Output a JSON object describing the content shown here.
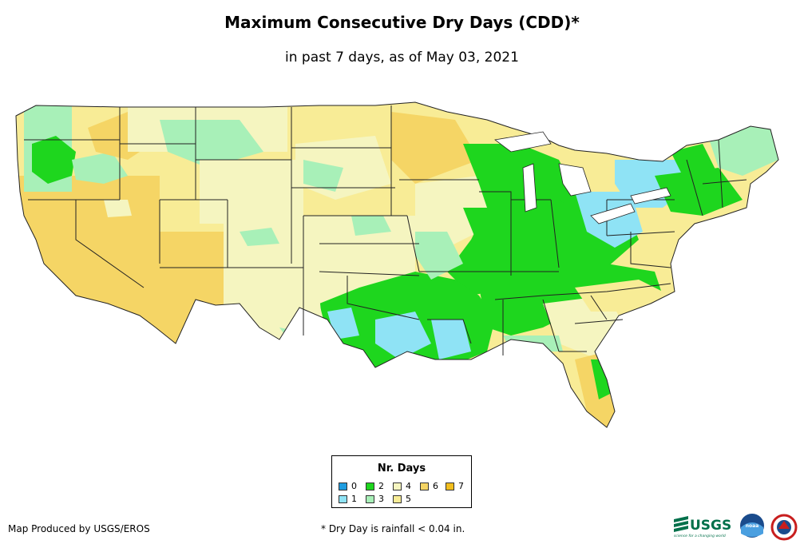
{
  "header": {
    "title": "Maximum Consecutive Dry Days (CDD)*",
    "subtitle": "in past 7 days, as of May 03, 2021"
  },
  "legend": {
    "title": "Nr. Days",
    "items": [
      {
        "label": "0",
        "color": "#1f9de0"
      },
      {
        "label": "1",
        "color": "#8fe3f5"
      },
      {
        "label": "2",
        "color": "#1ed61e"
      },
      {
        "label": "3",
        "color": "#a8f0b8"
      },
      {
        "label": "4",
        "color": "#f5f5c0"
      },
      {
        "label": "5",
        "color": "#f8ec96"
      },
      {
        "label": "6",
        "color": "#f5d565"
      },
      {
        "label": "7",
        "color": "#f2be1e"
      }
    ]
  },
  "footer": {
    "credit": "Map Produced by USGS/EROS",
    "footnote": "* Dry Day is rainfall < 0.04 in."
  },
  "logos": {
    "usgs_text": "USGS",
    "usgs_tagline": "science for a changing world",
    "noaa_text": "noaa"
  }
}
